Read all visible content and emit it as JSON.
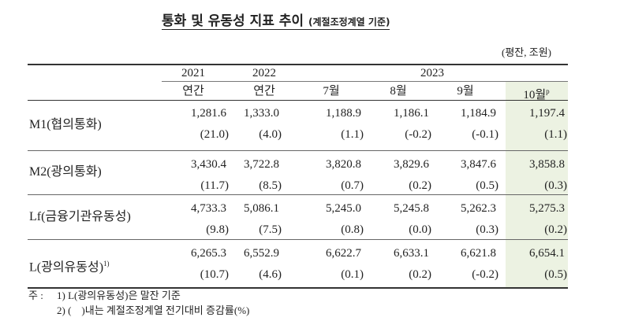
{
  "title": "통화 및 유동성 지표 추이",
  "subtitle": "(계절조정계열 기준)",
  "unit": "(평잔, 조원)",
  "table": {
    "year_headers": [
      "2021",
      "2022",
      "2023"
    ],
    "period_headers": [
      {
        "label": "연간"
      },
      {
        "label": "연간"
      },
      {
        "label": "7월"
      },
      {
        "label": "8월"
      },
      {
        "label": "9월"
      },
      {
        "label": "10월",
        "sup": "p"
      }
    ],
    "rows": [
      {
        "label": "M1(협의통화)",
        "values": [
          "1,281.6",
          "1,333.0",
          "1,188.9",
          "1,186.1",
          "1,184.9",
          "1,197.4"
        ],
        "changes": [
          "(21.0)",
          "(4.0)",
          "(1.1)",
          "(-0.2)",
          "(-0.1)",
          "(1.1)"
        ]
      },
      {
        "label": "M2(광의통화)",
        "values": [
          "3,430.4",
          "3,722.8",
          "3,820.8",
          "3,829.6",
          "3,847.6",
          "3,858.8"
        ],
        "changes": [
          "(11.7)",
          "(8.5)",
          "(0.7)",
          "(0.2)",
          "(0.5)",
          "(0.3)"
        ]
      },
      {
        "label": "Lf(금융기관유동성)",
        "values": [
          "4,733.3",
          "5,086.1",
          "5,245.0",
          "5,245.8",
          "5,262.3",
          "5,275.3"
        ],
        "changes": [
          "(9.8)",
          "(7.5)",
          "(0.8)",
          "(0.0)",
          "(0.3)",
          "(0.2)"
        ]
      },
      {
        "label": "L(광의유동성)",
        "sup": "1)",
        "values": [
          "6,265.3",
          "6,552.9",
          "6,622.7",
          "6,633.1",
          "6,621.8",
          "6,654.1"
        ],
        "changes": [
          "(10.7)",
          "(4.6)",
          "(0.1)",
          "(0.2)",
          "(-0.2)",
          "(0.5)"
        ]
      }
    ]
  },
  "notes": {
    "prefix": "주 :",
    "items": [
      "1) L(광의유동성)은 말잔 기준",
      "2) (    )내는 계절조정계열 전기대비 증감률(%)"
    ]
  }
}
